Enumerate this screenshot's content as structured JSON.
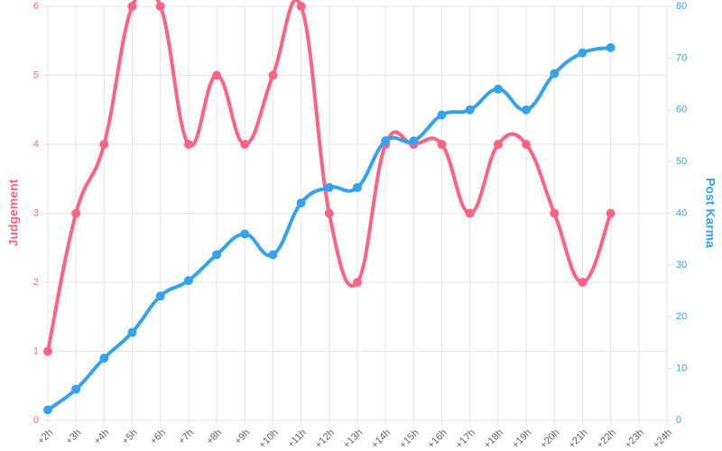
{
  "chart_data": {
    "type": "line",
    "categories": [
      "+2h",
      "+3h",
      "+4h",
      "+5h",
      "+6h",
      "+7h",
      "+8h",
      "+9h",
      "+10h",
      "+11h",
      "+12h",
      "+13h",
      "+14h",
      "+15h",
      "+16h",
      "+17h",
      "+18h",
      "+19h",
      "+20h",
      "+21h",
      "+22h",
      "+23h",
      "+24h"
    ],
    "series": [
      {
        "name": "Judgement",
        "color": "#ff6384",
        "axis": "y",
        "values": [
          1,
          3,
          4,
          6,
          6,
          4,
          5,
          4,
          5,
          6,
          3,
          2,
          4,
          4,
          4,
          3,
          4,
          4,
          3,
          2,
          3,
          null,
          null
        ]
      },
      {
        "name": "Post Karma",
        "color": "#36a2eb",
        "axis": "y2",
        "values": [
          2,
          6,
          12,
          17,
          24,
          27,
          32,
          36,
          32,
          42,
          45,
          45,
          54,
          54,
          59,
          60,
          64,
          60,
          67,
          71,
          72,
          null,
          null
        ]
      }
    ],
    "ylim": [
      0,
      6
    ],
    "yticks": [
      0,
      1,
      2,
      3,
      4,
      5,
      6
    ],
    "y2lim": [
      0,
      80
    ],
    "y2ticks": [
      0,
      10,
      20,
      30,
      40,
      50,
      60,
      70,
      80
    ],
    "grid": true
  }
}
